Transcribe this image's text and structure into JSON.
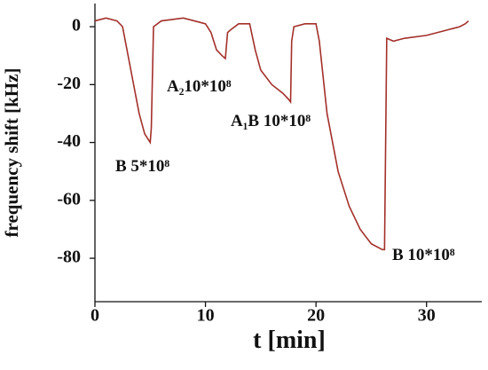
{
  "chart_data": {
    "type": "line",
    "xlabel": "t [min]",
    "ylabel": "frequency shift [kHz]",
    "x": [
      0,
      1,
      2,
      2.5,
      3,
      3.5,
      4,
      4.5,
      5,
      5.1,
      5.3,
      6,
      8,
      9,
      10,
      10.5,
      11,
      11.5,
      11.8,
      12,
      12.3,
      13,
      14,
      14.5,
      15,
      16,
      17,
      17.5,
      17.7,
      17.8,
      18,
      19,
      20,
      20.3,
      21,
      22,
      23,
      24,
      25,
      26,
      26.2,
      26.4,
      27,
      28,
      30,
      32,
      33,
      33.5,
      33.8
    ],
    "series": [
      {
        "color": "#a3302a",
        "values": [
          2,
          3,
          2,
          0,
          -10,
          -20,
          -30,
          -37,
          -40,
          -35,
          0,
          2,
          3,
          2,
          1,
          -2,
          -8,
          -10,
          -11,
          -2,
          -1,
          1,
          1,
          -8,
          -15,
          -20,
          -23,
          -25,
          -26,
          -5,
          0,
          1,
          1,
          -5,
          -30,
          -50,
          -62,
          -70,
          -75,
          -77,
          -77,
          -4,
          -5,
          -4,
          -3,
          -1,
          0,
          1,
          2
        ]
      }
    ],
    "annotations": [
      "B 5*10⁸",
      "A₂10*10⁸",
      "A₁B 10*10⁸",
      "B 10*10⁸"
    ],
    "xlim": [
      0,
      35
    ],
    "ylim": [
      -95,
      8
    ],
    "xticks": [
      0,
      10,
      20,
      30
    ],
    "yticks": [
      0,
      -20,
      -40,
      -60,
      -80
    ]
  }
}
